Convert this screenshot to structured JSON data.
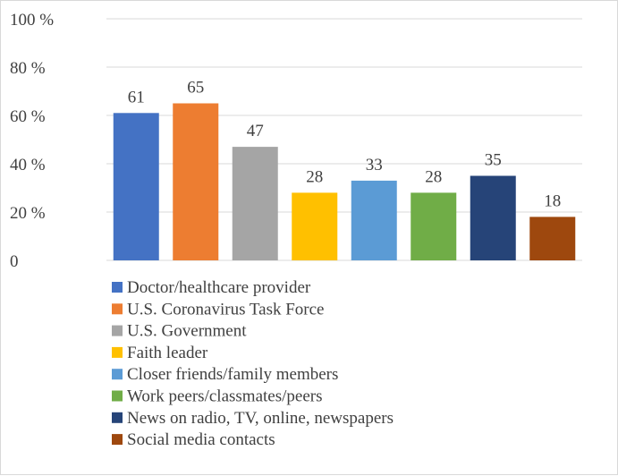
{
  "chart_data": {
    "type": "bar",
    "categories": [
      "Doctor/healthcare provider",
      "U.S. Coronavirus Task Force",
      "U.S. Government",
      "Faith leader",
      "Closer friends/family members",
      "Work peers/classmates/peers",
      "News on radio, TV, online, newspapers",
      "Social media contacts"
    ],
    "values": [
      61,
      65,
      47,
      28,
      33,
      28,
      35,
      18
    ],
    "data_labels": [
      "61",
      "65",
      "47",
      "28",
      "33",
      "28",
      "35",
      "18"
    ],
    "colors": [
      "#4472c4",
      "#ed7d31",
      "#a5a5a5",
      "#ffc000",
      "#5b9bd5",
      "#70ad47",
      "#264478",
      "#9e480e"
    ],
    "ylim": [
      0,
      100
    ],
    "yticks": [
      0,
      20,
      40,
      60,
      80,
      100
    ],
    "ytick_labels": [
      "0",
      "20 %",
      "40 %",
      "60 %",
      "80 %",
      "100 %"
    ],
    "grid": true,
    "legend_position": "bottom-left",
    "title": "",
    "xlabel": "",
    "ylabel": ""
  }
}
